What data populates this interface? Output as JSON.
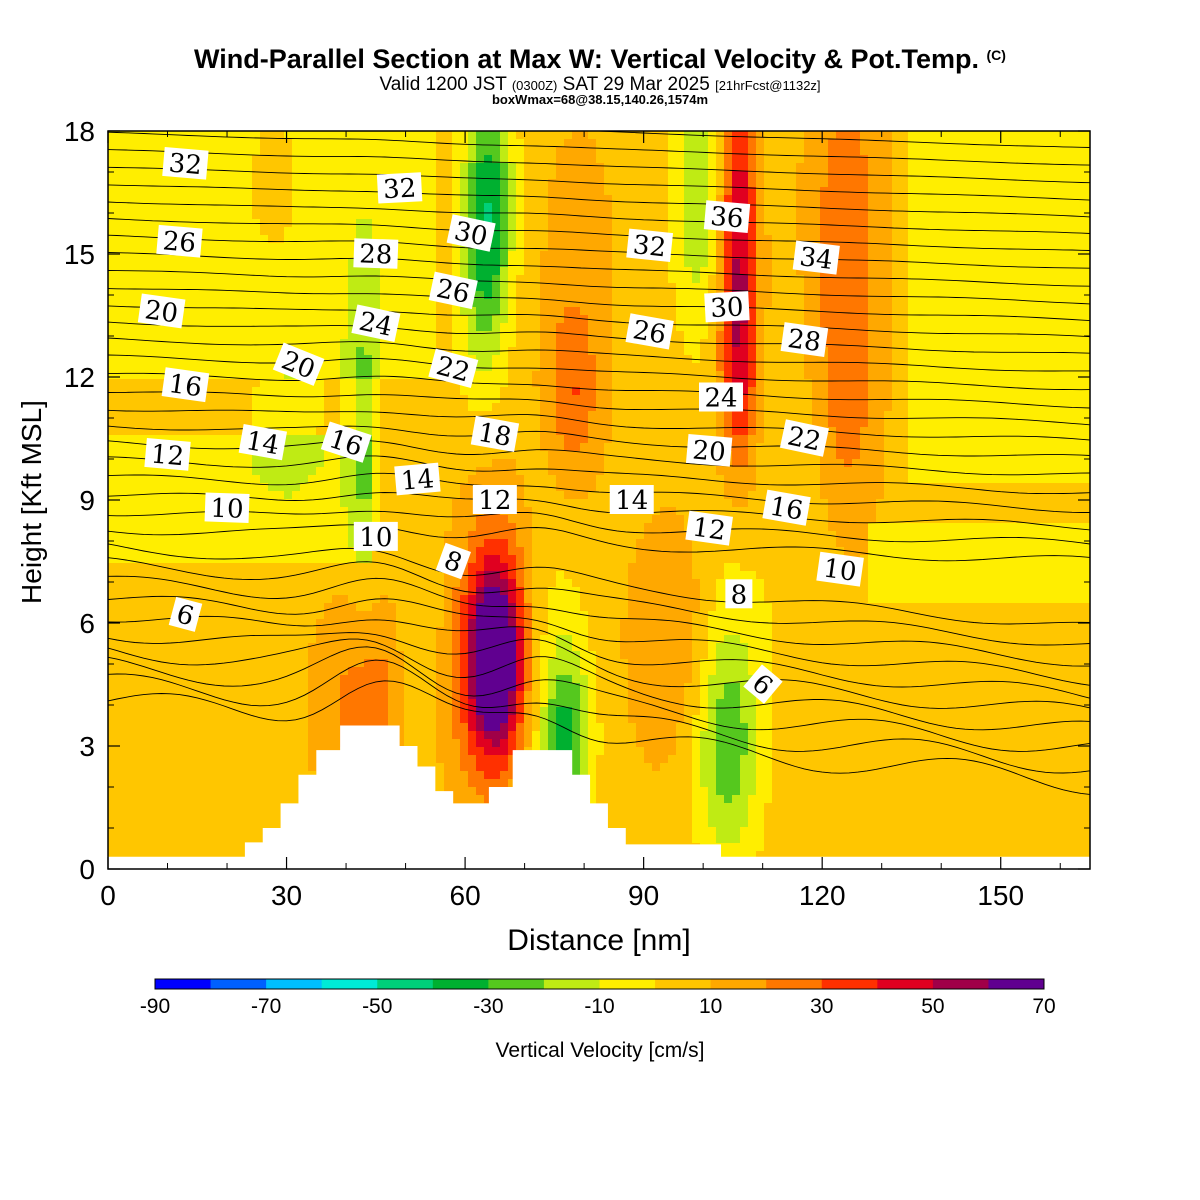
{
  "title": {
    "main": "Wind-Parallel Section at Max W: Vertical Velocity & Pot.Temp.",
    "copyright": "(C)",
    "valid_prefix": "Valid 1200 JST",
    "valid_utc": "(0300Z)",
    "valid_date": "SAT 29 Mar 2025",
    "forecast": "[21hrFcst@1132z]",
    "box_info": "boxWmax=68@38.15,140.26,1574m"
  },
  "chart_data": {
    "type": "heatmap",
    "xlabel": "Distance [nm]",
    "ylabel": "Height [Kft MSL]",
    "xlim": [
      0,
      165
    ],
    "ylim": [
      0,
      18
    ],
    "x_ticks": [
      0,
      30,
      60,
      90,
      120,
      150
    ],
    "y_ticks": [
      0,
      3,
      6,
      9,
      12,
      15,
      18
    ],
    "colorbar": {
      "label": "Vertical Velocity [cm/s]",
      "ticks": [
        "-90",
        "-70",
        "-50",
        "-30",
        "-10",
        "10",
        "30",
        "50",
        "70"
      ],
      "bins": [
        {
          "from": -90,
          "to": -80,
          "color": "#0000ff"
        },
        {
          "from": -80,
          "to": -70,
          "color": "#0060ff"
        },
        {
          "from": -70,
          "to": -60,
          "color": "#00bfff"
        },
        {
          "from": -60,
          "to": -50,
          "color": "#00ebd6"
        },
        {
          "from": -50,
          "to": -40,
          "color": "#00d07a"
        },
        {
          "from": -40,
          "to": -30,
          "color": "#00b030"
        },
        {
          "from": -30,
          "to": -20,
          "color": "#55c81e"
        },
        {
          "from": -20,
          "to": -10,
          "color": "#bfeb14"
        },
        {
          "from": -10,
          "to": 0,
          "color": "#ffee00"
        },
        {
          "from": 0,
          "to": 10,
          "color": "#ffc600"
        },
        {
          "from": 10,
          "to": 20,
          "color": "#ffa800"
        },
        {
          "from": 20,
          "to": 30,
          "color": "#ff7700"
        },
        {
          "from": 30,
          "to": 40,
          "color": "#ff3000"
        },
        {
          "from": 40,
          "to": 50,
          "color": "#e00020"
        },
        {
          "from": 50,
          "to": 60,
          "color": "#a00048"
        },
        {
          "from": 60,
          "to": 70,
          "color": "#600090"
        }
      ]
    },
    "velocity_features": [
      {
        "x": 65,
        "y": 5.0,
        "sx": 3.0,
        "sy": 1.5,
        "value": 75
      },
      {
        "x": 65,
        "y": 6.5,
        "sx": 4.5,
        "sy": 2.2,
        "value": 22
      },
      {
        "x": 62,
        "y": 4.0,
        "sx": 7.0,
        "sy": 2.5,
        "value": 15
      },
      {
        "x": 77,
        "y": 3.2,
        "sx": 3.0,
        "sy": 1.5,
        "value": -38
      },
      {
        "x": 75,
        "y": 5.0,
        "sx": 4.0,
        "sy": 3.0,
        "value": -14
      },
      {
        "x": 104,
        "y": 3.0,
        "sx": 4.0,
        "sy": 2.0,
        "value": -32
      },
      {
        "x": 104,
        "y": 5.5,
        "sx": 4.0,
        "sy": 3.0,
        "value": -15
      },
      {
        "x": 96,
        "y": 5.5,
        "sx": 6.0,
        "sy": 2.2,
        "value": 18
      },
      {
        "x": 44,
        "y": 4.0,
        "sx": 6.0,
        "sy": 2.0,
        "value": 25
      },
      {
        "x": 52,
        "y": 4.5,
        "sx": 3.0,
        "sy": 2.5,
        "value": -20
      },
      {
        "x": 106,
        "y": 15.5,
        "sx": 2.2,
        "sy": 3.2,
        "value": 45
      },
      {
        "x": 106,
        "y": 12.0,
        "sx": 2.5,
        "sy": 2.0,
        "value": 24
      },
      {
        "x": 99,
        "y": 16.5,
        "sx": 3.0,
        "sy": 2.5,
        "value": -28
      },
      {
        "x": 64,
        "y": 16.5,
        "sx": 3.0,
        "sy": 2.0,
        "value": -40
      },
      {
        "x": 63,
        "y": 14.0,
        "sx": 3.0,
        "sy": 2.0,
        "value": -25
      },
      {
        "x": 43,
        "y": 11.0,
        "sx": 2.0,
        "sy": 3.5,
        "value": -22
      },
      {
        "x": 124,
        "y": 15.0,
        "sx": 4.5,
        "sy": 3.5,
        "value": 26
      },
      {
        "x": 124,
        "y": 10.5,
        "sx": 4.0,
        "sy": 2.0,
        "value": 12
      },
      {
        "x": 78,
        "y": 11.5,
        "sx": 3.0,
        "sy": 1.5,
        "value": 24
      },
      {
        "x": 79,
        "y": 14.5,
        "sx": 5.0,
        "sy": 3.0,
        "value": 12
      },
      {
        "x": 28,
        "y": 16.0,
        "sx": 4.0,
        "sy": 2.0,
        "value": 10
      },
      {
        "x": 115,
        "y": 9.0,
        "sx": 5.0,
        "sy": 3.0,
        "value": -10
      },
      {
        "x": 140,
        "y": 12.5,
        "sx": 6.0,
        "sy": 2.5,
        "value": -8
      },
      {
        "x": 30,
        "y": 11.5,
        "sx": 8.0,
        "sy": 2.5,
        "value": -12
      },
      {
        "x": 150,
        "y": 2.0,
        "sx": 8.0,
        "sy": 2.0,
        "value": -10
      }
    ],
    "terrain_height_kft": [
      {
        "x": 0,
        "h": 0.3
      },
      {
        "x": 22,
        "h": 0.3
      },
      {
        "x": 23,
        "h": 0.65
      },
      {
        "x": 26,
        "h": 1.0
      },
      {
        "x": 29,
        "h": 1.6
      },
      {
        "x": 32,
        "h": 2.3
      },
      {
        "x": 35,
        "h": 2.9
      },
      {
        "x": 39,
        "h": 3.5
      },
      {
        "x": 48,
        "h": 3.5
      },
      {
        "x": 49,
        "h": 3.0
      },
      {
        "x": 52,
        "h": 2.5
      },
      {
        "x": 55,
        "h": 1.9
      },
      {
        "x": 58,
        "h": 1.6
      },
      {
        "x": 63,
        "h": 1.6
      },
      {
        "x": 64,
        "h": 2.0
      },
      {
        "x": 68,
        "h": 2.9
      },
      {
        "x": 77,
        "h": 2.9
      },
      {
        "x": 78,
        "h": 2.3
      },
      {
        "x": 81,
        "h": 1.6
      },
      {
        "x": 84,
        "h": 1.0
      },
      {
        "x": 87,
        "h": 0.6
      },
      {
        "x": 90,
        "h": 0.6
      },
      {
        "x": 103,
        "h": 0.3
      },
      {
        "x": 165,
        "h": 0.3
      }
    ],
    "contour_labels": [
      {
        "text": "32",
        "x": 13,
        "y": 17.2,
        "angle": 5
      },
      {
        "text": "32",
        "x": 49,
        "y": 16.6,
        "angle": -3
      },
      {
        "text": "30",
        "x": 61,
        "y": 15.5,
        "angle": 12
      },
      {
        "text": "36",
        "x": 104,
        "y": 15.9,
        "angle": 5
      },
      {
        "text": "32",
        "x": 91,
        "y": 15.2,
        "angle": 6
      },
      {
        "text": "34",
        "x": 119,
        "y": 14.9,
        "angle": 7
      },
      {
        "text": "26",
        "x": 12,
        "y": 15.3,
        "angle": 5
      },
      {
        "text": "28",
        "x": 45,
        "y": 15.0,
        "angle": 2
      },
      {
        "text": "26",
        "x": 58,
        "y": 14.1,
        "angle": 12
      },
      {
        "text": "30",
        "x": 104,
        "y": 13.7,
        "angle": -3
      },
      {
        "text": "20",
        "x": 9,
        "y": 13.6,
        "angle": 8
      },
      {
        "text": "24",
        "x": 45,
        "y": 13.3,
        "angle": 12
      },
      {
        "text": "26",
        "x": 91,
        "y": 13.1,
        "angle": 10
      },
      {
        "text": "28",
        "x": 117,
        "y": 12.9,
        "angle": 8
      },
      {
        "text": "20",
        "x": 32,
        "y": 12.3,
        "angle": 22
      },
      {
        "text": "22",
        "x": 58,
        "y": 12.2,
        "angle": 15
      },
      {
        "text": "16",
        "x": 13,
        "y": 11.8,
        "angle": 8
      },
      {
        "text": "24",
        "x": 103,
        "y": 11.5,
        "angle": 0
      },
      {
        "text": "14",
        "x": 26,
        "y": 10.4,
        "angle": 10
      },
      {
        "text": "16",
        "x": 40,
        "y": 10.4,
        "angle": 18
      },
      {
        "text": "18",
        "x": 65,
        "y": 10.6,
        "angle": 10
      },
      {
        "text": "22",
        "x": 117,
        "y": 10.5,
        "angle": 12
      },
      {
        "text": "12",
        "x": 10,
        "y": 10.1,
        "angle": 5
      },
      {
        "text": "20",
        "x": 101,
        "y": 10.2,
        "angle": 5
      },
      {
        "text": "14",
        "x": 52,
        "y": 9.5,
        "angle": -5
      },
      {
        "text": "12",
        "x": 65,
        "y": 9.0,
        "angle": 0
      },
      {
        "text": "14",
        "x": 88,
        "y": 9.0,
        "angle": 0
      },
      {
        "text": "16",
        "x": 114,
        "y": 8.8,
        "angle": 10
      },
      {
        "text": "10",
        "x": 20,
        "y": 8.8,
        "angle": 2
      },
      {
        "text": "12",
        "x": 101,
        "y": 8.3,
        "angle": 8
      },
      {
        "text": "10",
        "x": 45,
        "y": 8.1,
        "angle": 0
      },
      {
        "text": "8",
        "x": 58,
        "y": 7.5,
        "angle": 20
      },
      {
        "text": "10",
        "x": 123,
        "y": 7.3,
        "angle": 8
      },
      {
        "text": "8",
        "x": 106,
        "y": 6.7,
        "angle": 0
      },
      {
        "text": "6",
        "x": 13,
        "y": 6.2,
        "angle": 15
      },
      {
        "text": "6",
        "x": 110,
        "y": 4.5,
        "angle": 40
      }
    ]
  }
}
